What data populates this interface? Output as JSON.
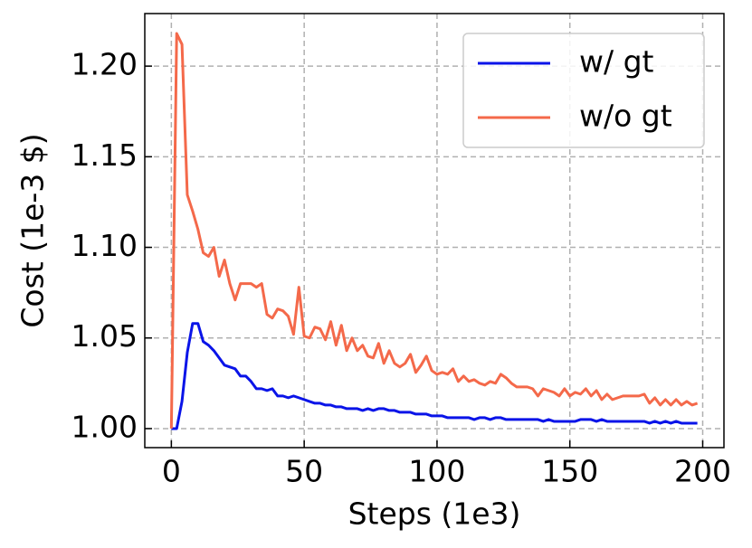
{
  "chart_data": {
    "type": "line",
    "xlabel": "Steps (1e3)",
    "ylabel": "Cost (1e-3 $)",
    "x": [
      0,
      2,
      4,
      6,
      8,
      10,
      12,
      14,
      16,
      18,
      20,
      22,
      24,
      26,
      28,
      30,
      32,
      34,
      36,
      38,
      40,
      42,
      44,
      46,
      48,
      50,
      52,
      54,
      56,
      58,
      60,
      62,
      64,
      66,
      68,
      70,
      72,
      74,
      76,
      78,
      80,
      82,
      84,
      86,
      88,
      90,
      92,
      94,
      96,
      98,
      100,
      102,
      104,
      106,
      108,
      110,
      112,
      114,
      116,
      118,
      120,
      122,
      124,
      126,
      128,
      130,
      132,
      134,
      136,
      138,
      140,
      142,
      144,
      146,
      148,
      150,
      152,
      154,
      156,
      158,
      160,
      162,
      164,
      166,
      168,
      170,
      172,
      174,
      176,
      178,
      180,
      182,
      184,
      186,
      188,
      190,
      192,
      194,
      196,
      198
    ],
    "series": [
      {
        "name": "w/ gt",
        "color": "#0a14e8",
        "values": [
          1.0,
          1.0,
          1.015,
          1.042,
          1.058,
          1.058,
          1.048,
          1.046,
          1.043,
          1.039,
          1.035,
          1.034,
          1.033,
          1.029,
          1.029,
          1.026,
          1.022,
          1.022,
          1.021,
          1.022,
          1.018,
          1.018,
          1.017,
          1.018,
          1.017,
          1.016,
          1.015,
          1.014,
          1.014,
          1.013,
          1.013,
          1.012,
          1.012,
          1.011,
          1.011,
          1.011,
          1.01,
          1.011,
          1.01,
          1.011,
          1.011,
          1.01,
          1.01,
          1.009,
          1.009,
          1.009,
          1.008,
          1.008,
          1.008,
          1.007,
          1.007,
          1.007,
          1.006,
          1.006,
          1.006,
          1.006,
          1.006,
          1.005,
          1.006,
          1.006,
          1.005,
          1.006,
          1.006,
          1.005,
          1.005,
          1.005,
          1.005,
          1.005,
          1.005,
          1.005,
          1.004,
          1.005,
          1.004,
          1.004,
          1.004,
          1.004,
          1.004,
          1.005,
          1.005,
          1.005,
          1.004,
          1.005,
          1.004,
          1.004,
          1.004,
          1.004,
          1.004,
          1.004,
          1.004,
          1.004,
          1.003,
          1.004,
          1.003,
          1.004,
          1.003,
          1.004,
          1.003,
          1.003,
          1.003,
          1.003
        ]
      },
      {
        "name": "w/o gt",
        "color": "#f4694a",
        "values": [
          1.0,
          1.218,
          1.212,
          1.129,
          1.12,
          1.11,
          1.097,
          1.095,
          1.1,
          1.084,
          1.093,
          1.08,
          1.071,
          1.08,
          1.08,
          1.08,
          1.078,
          1.08,
          1.063,
          1.061,
          1.066,
          1.065,
          1.062,
          1.052,
          1.078,
          1.051,
          1.05,
          1.056,
          1.055,
          1.049,
          1.059,
          1.046,
          1.057,
          1.043,
          1.05,
          1.043,
          1.046,
          1.04,
          1.039,
          1.047,
          1.036,
          1.043,
          1.036,
          1.034,
          1.036,
          1.041,
          1.031,
          1.035,
          1.04,
          1.032,
          1.03,
          1.031,
          1.03,
          1.033,
          1.026,
          1.029,
          1.026,
          1.027,
          1.025,
          1.024,
          1.026,
          1.025,
          1.03,
          1.028,
          1.025,
          1.023,
          1.023,
          1.023,
          1.022,
          1.018,
          1.022,
          1.021,
          1.02,
          1.018,
          1.022,
          1.018,
          1.02,
          1.019,
          1.022,
          1.018,
          1.021,
          1.016,
          1.019,
          1.016,
          1.017,
          1.018,
          1.018,
          1.018,
          1.018,
          1.019,
          1.014,
          1.017,
          1.013,
          1.016,
          1.013,
          1.016,
          1.013,
          1.015,
          1.013,
          1.014
        ]
      }
    ],
    "xlim": [
      -10,
      208
    ],
    "ylim": [
      0.9895,
      1.229
    ],
    "xticks": [
      0,
      50,
      100,
      150,
      200
    ],
    "yticks": [
      {
        "value": 1,
        "label": "1.00"
      },
      1.05,
      {
        "value": 1.1,
        "label": "1.10"
      },
      1.15,
      {
        "value": 1.2,
        "label": "1.20"
      }
    ],
    "grid": true,
    "legend": "upper right"
  }
}
